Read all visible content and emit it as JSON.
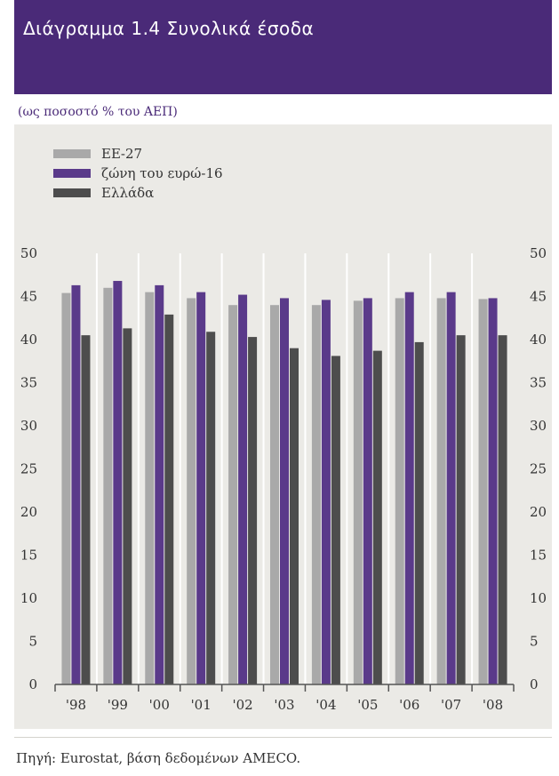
{
  "header": {
    "title": "Διάγραμμα 1.4  Συνολικά έσοδα"
  },
  "subtitle": "(ως ποσοστό % του ΑΕΠ)",
  "source": "Πηγή: Eurostat, βάση δεδομένων AMECO.",
  "colors": {
    "header_bg": "#4a2a78",
    "panel_bg": "#ebeae6"
  },
  "chart_data": {
    "type": "bar",
    "categories": [
      "'98",
      "'99",
      "'00",
      "'01",
      "'02",
      "'03",
      "'04",
      "'05",
      "'06",
      "'07",
      "'08"
    ],
    "series": [
      {
        "name": "ΕΕ-27",
        "color": "#a9a9a9",
        "values": [
          45.4,
          46.0,
          45.5,
          44.8,
          44.0,
          44.0,
          44.0,
          44.5,
          44.8,
          44.8,
          44.7
        ]
      },
      {
        "name": "ζώνη του ευρώ-16",
        "color": "#5a3a8a",
        "values": [
          46.3,
          46.8,
          46.3,
          45.5,
          45.2,
          44.8,
          44.6,
          44.8,
          45.5,
          45.5,
          44.8
        ]
      },
      {
        "name": "Ελλάδα",
        "color": "#4d4d4d",
        "values": [
          40.5,
          41.3,
          42.9,
          40.9,
          40.3,
          39.0,
          38.1,
          38.7,
          39.7,
          40.5,
          40.5
        ]
      }
    ],
    "ylim": [
      0,
      50
    ],
    "yticks": [
      0,
      5,
      10,
      15,
      20,
      25,
      30,
      35,
      40,
      45,
      50
    ],
    "grid": "vertical",
    "legend": "top-left",
    "right_axis": true
  }
}
